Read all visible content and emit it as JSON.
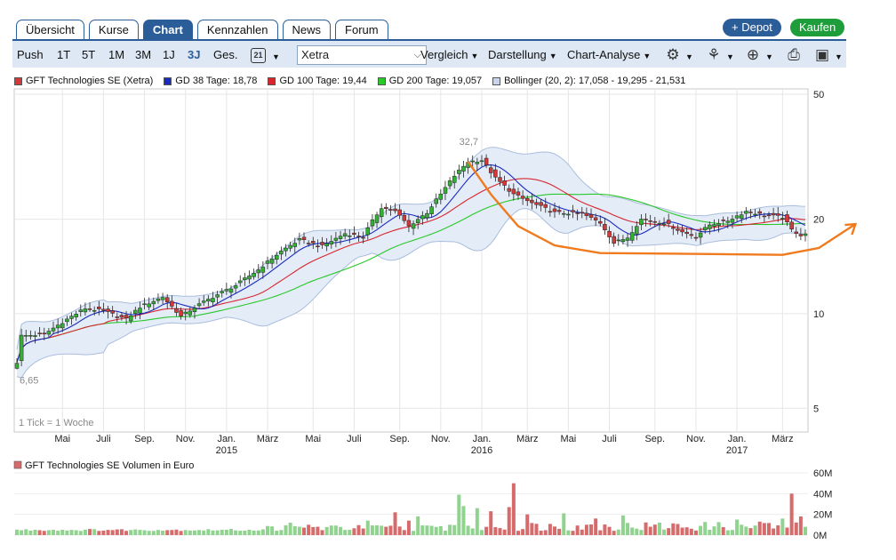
{
  "tabs": [
    {
      "label": "Übersicht",
      "active": false
    },
    {
      "label": "Kurse",
      "active": false
    },
    {
      "label": "Chart",
      "active": true
    },
    {
      "label": "Kennzahlen",
      "active": false
    },
    {
      "label": "News",
      "active": false
    },
    {
      "label": "Forum",
      "active": false
    }
  ],
  "actions": {
    "depot": "+ Depot",
    "buy": "Kaufen"
  },
  "toolbar": {
    "periods": [
      {
        "label": "Push",
        "selected": false
      },
      {
        "label": "1T",
        "selected": false
      },
      {
        "label": "5T",
        "selected": false
      },
      {
        "label": "1M",
        "selected": false
      },
      {
        "label": "3M",
        "selected": false
      },
      {
        "label": "1J",
        "selected": false
      },
      {
        "label": "3J",
        "selected": true
      },
      {
        "label": "Ges.",
        "selected": false
      }
    ],
    "calendar_day": "21",
    "exchange": "Xetra",
    "compare": "Vergleich",
    "display": "Darstellung",
    "analysis": "Chart-Analyse",
    "icons": [
      "calendar-icon",
      "settings-gear-icon",
      "tools-icon",
      "zoom-icon",
      "print-icon",
      "save-icon"
    ]
  },
  "colors": {
    "up": "#34b034",
    "down": "#d23a3a",
    "gd38": "#1a2bbf",
    "gd100": "#d8262e",
    "gd200": "#2ac82a",
    "bollinger_fill": "#e4ecf8",
    "bollinger_line": "#a9bddd",
    "annotation": "#f07a1e",
    "volume_up": "#8fd38f",
    "volume_down": "#d66b6b"
  },
  "legend": [
    {
      "label": "GFT Technologies SE (Xetra)",
      "color": "#d23a3a"
    },
    {
      "label": "GD 38 Tage: 18,78",
      "color": "#1a2bbf"
    },
    {
      "label": "GD 100 Tage: 19,44",
      "color": "#d8262e"
    },
    {
      "label": "GD 200 Tage: 19,057",
      "color": "#2ac82a"
    },
    {
      "label": "Bollinger (20, 2): 17,058 - 19,295 - 21,531",
      "color": "#c7d6ee"
    }
  ],
  "chart_data": [
    {
      "type": "candlestick",
      "title": "",
      "scale": "log",
      "ylim": [
        4.2,
        52
      ],
      "y_ticks": [
        {
          "label": "50",
          "value": 50
        },
        {
          "label": "20",
          "value": 20
        },
        {
          "label": "10",
          "value": 10
        },
        {
          "label": "5",
          "value": 5
        }
      ],
      "grid": true,
      "x_ticks": [
        {
          "label": "Mai",
          "week": 10
        },
        {
          "label": "Juli",
          "week": 19
        },
        {
          "label": "Sep.",
          "week": 28
        },
        {
          "label": "Nov.",
          "week": 37
        },
        {
          "label": "Jan.",
          "week": 46,
          "year": "2015"
        },
        {
          "label": "März",
          "week": 55
        },
        {
          "label": "Mai",
          "week": 65
        },
        {
          "label": "Juli",
          "week": 74
        },
        {
          "label": "Sep.",
          "week": 84
        },
        {
          "label": "Nov.",
          "week": 93
        },
        {
          "label": "Jan.",
          "week": 102,
          "year": "2016"
        },
        {
          "label": "März",
          "week": 112
        },
        {
          "label": "Mai",
          "week": 121
        },
        {
          "label": "Juli",
          "week": 130
        },
        {
          "label": "Sep.",
          "week": 140
        },
        {
          "label": "Nov.",
          "week": 149
        },
        {
          "label": "Jan.",
          "week": 158,
          "year": "2017"
        },
        {
          "label": "März",
          "week": 168
        }
      ],
      "tick_note": "1 Tick = 1 Woche",
      "annotations": [
        {
          "label": "32,7",
          "week": 99,
          "value": 32.7
        },
        {
          "label": "6,65",
          "week": 0,
          "value": 6.65
        }
      ],
      "close_anchors": [
        [
          0,
          7.0
        ],
        [
          1,
          8.5
        ],
        [
          6,
          8.6
        ],
        [
          12,
          9.8
        ],
        [
          15,
          10.4
        ],
        [
          19,
          10.2
        ],
        [
          24,
          9.6
        ],
        [
          27,
          10.5
        ],
        [
          32,
          11.3
        ],
        [
          36,
          9.8
        ],
        [
          40,
          10.7
        ],
        [
          44,
          11.5
        ],
        [
          48,
          12.3
        ],
        [
          53,
          13.8
        ],
        [
          58,
          15.8
        ],
        [
          62,
          17.2
        ],
        [
          67,
          16.4
        ],
        [
          72,
          18.0
        ],
        [
          76,
          17.6
        ],
        [
          80,
          21.8
        ],
        [
          83,
          21.2
        ],
        [
          86,
          19.0
        ],
        [
          90,
          21.0
        ],
        [
          93,
          24.0
        ],
        [
          96,
          27.5
        ],
        [
          99,
          30.5
        ],
        [
          102,
          30.8
        ],
        [
          105,
          27.0
        ],
        [
          109,
          24.0
        ],
        [
          113,
          22.5
        ],
        [
          118,
          21.0
        ],
        [
          124,
          20.8
        ],
        [
          128,
          19.5
        ],
        [
          131,
          16.8
        ],
        [
          134,
          17.5
        ],
        [
          137,
          20.0
        ],
        [
          142,
          19.5
        ],
        [
          146,
          18.2
        ],
        [
          149,
          17.6
        ],
        [
          152,
          19.2
        ],
        [
          156,
          19.8
        ],
        [
          160,
          21.2
        ],
        [
          164,
          20.6
        ],
        [
          168,
          20.3
        ],
        [
          170,
          18.5
        ],
        [
          172,
          17.8
        ],
        [
          173,
          18.0
        ]
      ],
      "series": [
        {
          "name": "GFT Technologies SE (Xetra)",
          "kind": "candles"
        },
        {
          "name": "GD 38 Tage: 18,78",
          "kind": "moving-average",
          "window": 8
        },
        {
          "name": "GD 100 Tage: 19,44",
          "kind": "moving-average",
          "window": 20
        },
        {
          "name": "GD 200 Tage: 19,057",
          "kind": "moving-average",
          "window": 40
        },
        {
          "name": "Bollinger (20, 2): 17,058 - 19,295 - 21,531",
          "kind": "band"
        }
      ]
    },
    {
      "type": "bar",
      "title": "GFT Technologies SE Volumen in Euro",
      "ylim": [
        0,
        60
      ],
      "y_ticks": [
        "0M",
        "20M",
        "40M",
        "60M"
      ],
      "spikes": [
        [
          60,
          12
        ],
        [
          64,
          10
        ],
        [
          77,
          14
        ],
        [
          83,
          22
        ],
        [
          86,
          14
        ],
        [
          88,
          18
        ],
        [
          97,
          39
        ],
        [
          98,
          28
        ],
        [
          101,
          26
        ],
        [
          104,
          23
        ],
        [
          108,
          27
        ],
        [
          109,
          50
        ],
        [
          112,
          20
        ],
        [
          120,
          21
        ],
        [
          125,
          10
        ],
        [
          127,
          16
        ],
        [
          133,
          19
        ],
        [
          158,
          15
        ],
        [
          163,
          13
        ],
        [
          168,
          16
        ],
        [
          170,
          40
        ],
        [
          172,
          18
        ],
        [
          173,
          8
        ]
      ],
      "base_volume": 4
    }
  ]
}
